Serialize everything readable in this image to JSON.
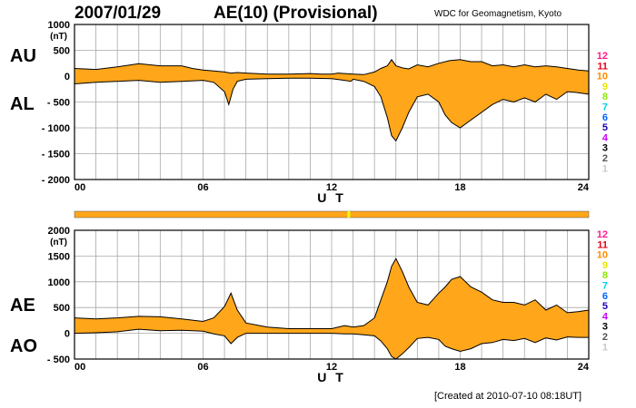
{
  "header": {
    "date": "2007/01/29",
    "title": "AE(10) (Provisional)",
    "source": "WDC for Geomagnetism, Kyoto"
  },
  "footer": "[Created at 2010-07-10 08:18UT]",
  "colors": {
    "fill": "#ffa61a",
    "line": "#000000",
    "grid": "#a8a8a8",
    "quality_marker": "#ffff00"
  },
  "kp_scale": [
    {
      "label": "12",
      "color": "#ff1a8c"
    },
    {
      "label": "11",
      "color": "#e6001a"
    },
    {
      "label": "10",
      "color": "#ff8c00"
    },
    {
      "label": "9",
      "color": "#e6e600"
    },
    {
      "label": "8",
      "color": "#8ce600"
    },
    {
      "label": "7",
      "color": "#00d2e6"
    },
    {
      "label": "6",
      "color": "#0064ff"
    },
    {
      "label": "5",
      "color": "#1a00b4"
    },
    {
      "label": "4",
      "color": "#c800ff"
    },
    {
      "label": "3",
      "color": "#000000"
    },
    {
      "label": "2",
      "color": "#555555"
    },
    {
      "label": "1",
      "color": "#c8c8c8"
    }
  ],
  "chart_data": [
    {
      "type": "area",
      "name": "top",
      "side_labels": [
        "AU",
        "AL"
      ],
      "unit": "(nT)",
      "ylim": [
        -2000,
        1000
      ],
      "yticks": [
        "1000",
        "500",
        "0",
        "- 500",
        "- 1000",
        "- 1500",
        "- 2000"
      ],
      "xlim": [
        0,
        24
      ],
      "xticks": [
        "00",
        "06",
        "12",
        "18",
        "24"
      ],
      "xlabel": "U T",
      "grid": true,
      "upper_series": {
        "name": "AU",
        "x": [
          0,
          1,
          2,
          3,
          4,
          5,
          5.5,
          6,
          6.5,
          7,
          7.3,
          7.6,
          8,
          9,
          10,
          11,
          11.5,
          12,
          12.3,
          12.6,
          13,
          13.5,
          14,
          14.3,
          14.6,
          14.8,
          15,
          15.3,
          15.6,
          16,
          16.5,
          17,
          17.5,
          18,
          18.5,
          19,
          19.5,
          20,
          20.5,
          21,
          21.5,
          22,
          22.5,
          23,
          23.5,
          24
        ],
        "y": [
          150,
          130,
          180,
          240,
          200,
          200,
          150,
          120,
          100,
          80,
          60,
          70,
          60,
          40,
          40,
          50,
          40,
          40,
          60,
          50,
          40,
          30,
          80,
          150,
          200,
          320,
          200,
          160,
          140,
          220,
          180,
          250,
          300,
          320,
          280,
          280,
          200,
          220,
          180,
          220,
          180,
          200,
          180,
          150,
          120,
          100
        ]
      },
      "lower_series": {
        "name": "AL",
        "x": [
          0,
          1,
          2,
          3,
          4,
          5,
          6,
          6.5,
          7,
          7.2,
          7.4,
          7.6,
          8,
          9,
          10,
          11,
          12,
          12.6,
          12.9,
          13,
          13.5,
          14,
          14.3,
          14.6,
          14.8,
          15,
          15.3,
          15.6,
          16,
          16.5,
          17,
          17.3,
          17.6,
          18,
          18.5,
          19,
          19.5,
          20,
          20.5,
          21,
          21.5,
          22,
          22.5,
          23,
          23.5,
          24
        ],
        "y": [
          -150,
          -120,
          -100,
          -80,
          -120,
          -100,
          -80,
          -120,
          -300,
          -550,
          -250,
          -100,
          -60,
          -50,
          -40,
          -40,
          -50,
          -80,
          -100,
          -60,
          -100,
          -200,
          -400,
          -800,
          -1150,
          -1250,
          -1000,
          -700,
          -400,
          -350,
          -500,
          -750,
          -900,
          -1000,
          -850,
          -700,
          -550,
          -450,
          -500,
          -420,
          -500,
          -350,
          -450,
          -300,
          -320,
          -350
        ]
      }
    },
    {
      "type": "area",
      "name": "bottom",
      "side_labels": [
        "AE",
        "AO"
      ],
      "unit": "(nT)",
      "ylim": [
        -500,
        2000
      ],
      "yticks": [
        "2000",
        "1500",
        "1000",
        "500",
        "0",
        "- 500"
      ],
      "xlim": [
        0,
        24
      ],
      "xticks": [
        "00",
        "06",
        "12",
        "18",
        "24"
      ],
      "xlabel": "U T",
      "grid": true,
      "upper_series": {
        "name": "AE",
        "x": [
          0,
          1,
          2,
          3,
          4,
          5,
          6,
          6.5,
          7,
          7.3,
          7.6,
          8,
          9,
          10,
          11,
          12,
          12.6,
          13,
          13.5,
          14,
          14.3,
          14.6,
          14.8,
          15,
          15.3,
          15.6,
          16,
          16.5,
          17,
          17.3,
          17.6,
          18,
          18.5,
          19,
          19.5,
          20,
          20.5,
          21,
          21.5,
          22,
          22.5,
          23,
          23.5,
          24
        ],
        "y": [
          300,
          280,
          300,
          330,
          320,
          280,
          230,
          300,
          520,
          780,
          450,
          200,
          120,
          90,
          90,
          90,
          150,
          120,
          150,
          300,
          650,
          1000,
          1300,
          1450,
          1200,
          900,
          600,
          550,
          780,
          900,
          1050,
          1100,
          900,
          800,
          650,
          600,
          600,
          550,
          650,
          450,
          550,
          400,
          420,
          450
        ]
      },
      "lower_series": {
        "name": "AO",
        "x": [
          0,
          1,
          2,
          3,
          4,
          5,
          6,
          6.5,
          7,
          7.3,
          7.6,
          8,
          9,
          10,
          11,
          12,
          12.6,
          13,
          13.5,
          14,
          14.3,
          14.6,
          14.8,
          15,
          15.3,
          15.6,
          16,
          16.5,
          17,
          17.3,
          17.6,
          18,
          18.5,
          19,
          19.5,
          20,
          20.5,
          21,
          21.5,
          22,
          22.5,
          23,
          23.5,
          24
        ],
        "y": [
          0,
          10,
          30,
          80,
          50,
          60,
          40,
          -10,
          -50,
          -200,
          -80,
          0,
          0,
          0,
          0,
          0,
          -10,
          -10,
          -30,
          -50,
          -150,
          -300,
          -450,
          -500,
          -400,
          -280,
          -100,
          -80,
          -120,
          -250,
          -300,
          -350,
          -300,
          -200,
          -180,
          -120,
          -140,
          -100,
          -180,
          -90,
          -130,
          -70,
          -80,
          -80
        ]
      }
    }
  ],
  "quality_bar": {
    "color": "#ffa61a",
    "markers": [
      {
        "hour": 12.8,
        "color": "#ffff00"
      }
    ]
  }
}
